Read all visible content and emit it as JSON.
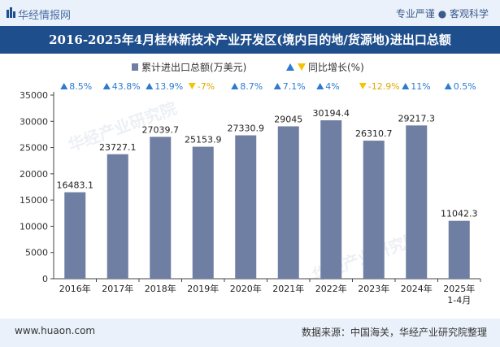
{
  "header": {
    "brand": "华经情报网",
    "tags": "专业严谨 ● 客观科学"
  },
  "footer": {
    "site": "www.huaon.com",
    "source": "数据来源：中国海关，华经产业研究院整理"
  },
  "watermark": "华经产业研究院",
  "colors": {
    "bar": "#6f7fa3",
    "up": "#2b7bd0",
    "down": "#f5c400",
    "titlebar": "#1f4e8c"
  },
  "chart_data": {
    "type": "bar",
    "title": "2016-2025年4月桂林新技术产业开发区(境内目的地/货源地)进出口总额",
    "legend": {
      "bar_label": "累计进出口总额(万美元)",
      "growth_label": "同比增长(%)",
      "position": "top-center"
    },
    "categories": [
      "2016年",
      "2017年",
      "2018年",
      "2019年",
      "2020年",
      "2021年",
      "2022年",
      "2023年",
      "2024年",
      "2025年1-4月"
    ],
    "values": [
      16483.1,
      23727.1,
      27039.7,
      25153.9,
      27330.9,
      29045,
      30194.4,
      26310.7,
      29217.3,
      11042.3
    ],
    "value_labels": [
      "16483.1",
      "23727.1",
      "27039.7",
      "25153.9",
      "27330.9",
      "29045",
      "30194.4",
      "26310.7",
      "29217.3",
      "11042.3"
    ],
    "growth": [
      8.5,
      43.8,
      13.9,
      -7,
      8.7,
      7.1,
      4,
      -12.9,
      11,
      0.5
    ],
    "growth_labels": [
      "8.5%",
      "43.8%",
      "13.9%",
      "-7%",
      "8.7%",
      "7.1%",
      "4%",
      "-12.9%",
      "11%",
      "0.5%"
    ],
    "ylim": [
      0,
      35000
    ],
    "yticks": [
      "0",
      "5000",
      "10000",
      "15000",
      "20000",
      "25000",
      "30000",
      "35000"
    ],
    "grid": false
  }
}
